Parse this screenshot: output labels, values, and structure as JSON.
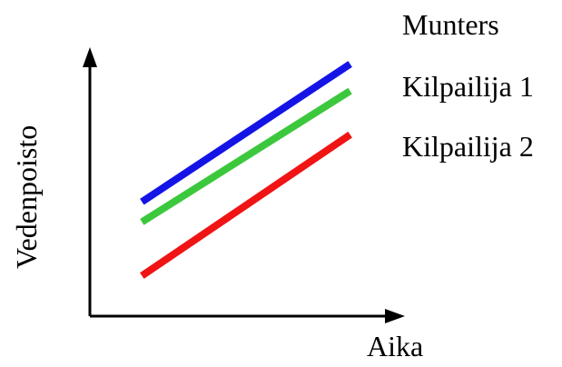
{
  "chart_data": {
    "type": "line",
    "title": "",
    "xlabel": "Aika",
    "ylabel": "Vedenpoisto",
    "grid": false,
    "legend_placement": "top-right",
    "series": [
      {
        "name": "Munters",
        "color": "#1414e6",
        "points": [
          [
            1,
            3.4
          ],
          [
            5,
            7.5
          ]
        ]
      },
      {
        "name": "Kilpailija 1",
        "color": "#3cc83c",
        "points": [
          [
            1,
            2.8
          ],
          [
            5,
            6.7
          ]
        ]
      },
      {
        "name": "Kilpailija 2",
        "color": "#f01414",
        "points": [
          [
            1,
            1.2
          ],
          [
            5,
            5.4
          ]
        ]
      }
    ],
    "xlim": [
      0,
      6
    ],
    "ylim": [
      0,
      8
    ]
  }
}
